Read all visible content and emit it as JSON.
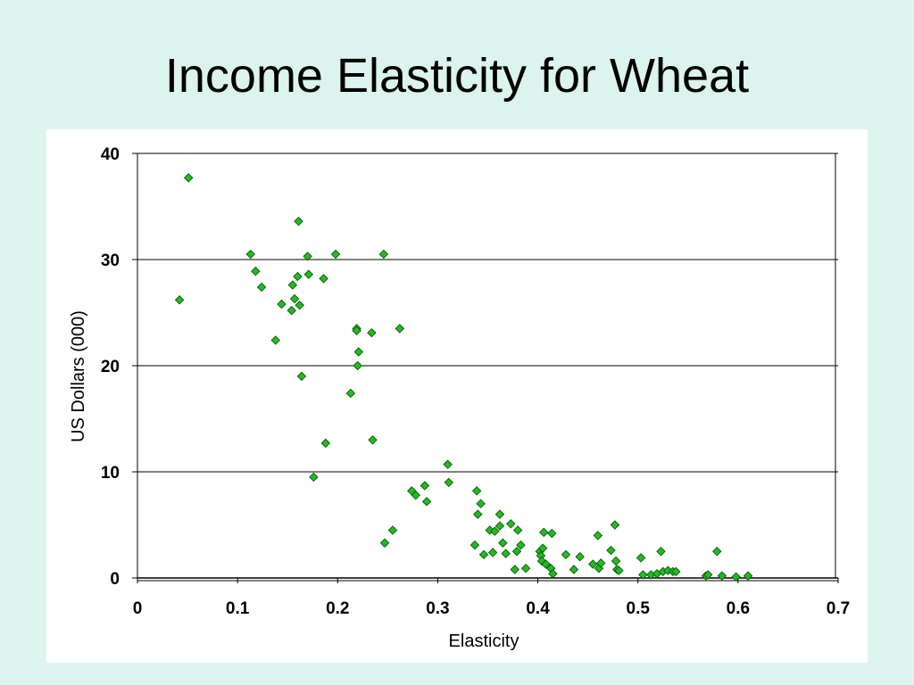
{
  "slide": {
    "title": "Income Elasticity for Wheat"
  },
  "colors": {
    "background": "#dcf4ee",
    "panel": "#ffffff",
    "marker_fill": "#22bb22",
    "marker_stroke": "#0a5a0a",
    "gridline": "#000000"
  },
  "chart_data": {
    "type": "scatter",
    "title": "",
    "xlabel": "Elasticity",
    "ylabel": "US Dollars (000)",
    "xlim": [
      0,
      0.7
    ],
    "ylim": [
      0,
      40
    ],
    "x_ticks": [
      "0",
      "0.1",
      "0.2",
      "0.3",
      "0.4",
      "0.5",
      "0.6",
      "0.7"
    ],
    "y_ticks": [
      "0",
      "10",
      "20",
      "30",
      "40"
    ],
    "grid": "horizontal",
    "legend": "none",
    "marker": "diamond",
    "points": [
      [
        0.042,
        26.2
      ],
      [
        0.051,
        37.7
      ],
      [
        0.113,
        30.5
      ],
      [
        0.118,
        28.9
      ],
      [
        0.124,
        27.4
      ],
      [
        0.138,
        22.4
      ],
      [
        0.144,
        25.8
      ],
      [
        0.154,
        25.2
      ],
      [
        0.155,
        27.6
      ],
      [
        0.157,
        26.3
      ],
      [
        0.16,
        28.4
      ],
      [
        0.161,
        33.6
      ],
      [
        0.162,
        25.7
      ],
      [
        0.164,
        19.0
      ],
      [
        0.17,
        30.3
      ],
      [
        0.171,
        28.6
      ],
      [
        0.176,
        9.5
      ],
      [
        0.186,
        28.2
      ],
      [
        0.188,
        12.7
      ],
      [
        0.198,
        30.5
      ],
      [
        0.213,
        17.4
      ],
      [
        0.219,
        23.5
      ],
      [
        0.219,
        23.3
      ],
      [
        0.22,
        20.0
      ],
      [
        0.221,
        21.3
      ],
      [
        0.234,
        23.1
      ],
      [
        0.235,
        13.0
      ],
      [
        0.246,
        30.5
      ],
      [
        0.247,
        3.3
      ],
      [
        0.255,
        4.5
      ],
      [
        0.262,
        23.5
      ],
      [
        0.274,
        8.2
      ],
      [
        0.278,
        7.8
      ],
      [
        0.287,
        8.7
      ],
      [
        0.289,
        7.2
      ],
      [
        0.31,
        10.7
      ],
      [
        0.311,
        9.0
      ],
      [
        0.337,
        3.1
      ],
      [
        0.339,
        8.2
      ],
      [
        0.34,
        6.0
      ],
      [
        0.343,
        7.0
      ],
      [
        0.346,
        2.2
      ],
      [
        0.352,
        4.5
      ],
      [
        0.355,
        2.4
      ],
      [
        0.357,
        4.4
      ],
      [
        0.362,
        6.0
      ],
      [
        0.362,
        4.9
      ],
      [
        0.365,
        3.3
      ],
      [
        0.368,
        2.3
      ],
      [
        0.373,
        5.1
      ],
      [
        0.377,
        0.8
      ],
      [
        0.379,
        2.5
      ],
      [
        0.38,
        4.5
      ],
      [
        0.383,
        3.1
      ],
      [
        0.388,
        0.9
      ],
      [
        0.402,
        2.5
      ],
      [
        0.403,
        2.1
      ],
      [
        0.404,
        1.6
      ],
      [
        0.405,
        2.8
      ],
      [
        0.406,
        4.3
      ],
      [
        0.408,
        1.3
      ],
      [
        0.413,
        0.9
      ],
      [
        0.414,
        4.2
      ],
      [
        0.415,
        0.4
      ],
      [
        0.428,
        2.2
      ],
      [
        0.436,
        0.8
      ],
      [
        0.442,
        2.0
      ],
      [
        0.455,
        1.3
      ],
      [
        0.46,
        4.0
      ],
      [
        0.461,
        0.9
      ],
      [
        0.463,
        1.4
      ],
      [
        0.473,
        2.6
      ],
      [
        0.477,
        5.0
      ],
      [
        0.478,
        1.6
      ],
      [
        0.479,
        0.8
      ],
      [
        0.481,
        0.7
      ],
      [
        0.503,
        1.9
      ],
      [
        0.505,
        0.3
      ],
      [
        0.513,
        0.3
      ],
      [
        0.519,
        0.4
      ],
      [
        0.523,
        2.5
      ],
      [
        0.525,
        0.6
      ],
      [
        0.53,
        0.7
      ],
      [
        0.535,
        0.6
      ],
      [
        0.538,
        0.6
      ],
      [
        0.568,
        0.2
      ],
      [
        0.57,
        0.3
      ],
      [
        0.579,
        2.5
      ],
      [
        0.584,
        0.2
      ],
      [
        0.598,
        0.1
      ],
      [
        0.61,
        0.2
      ]
    ]
  }
}
